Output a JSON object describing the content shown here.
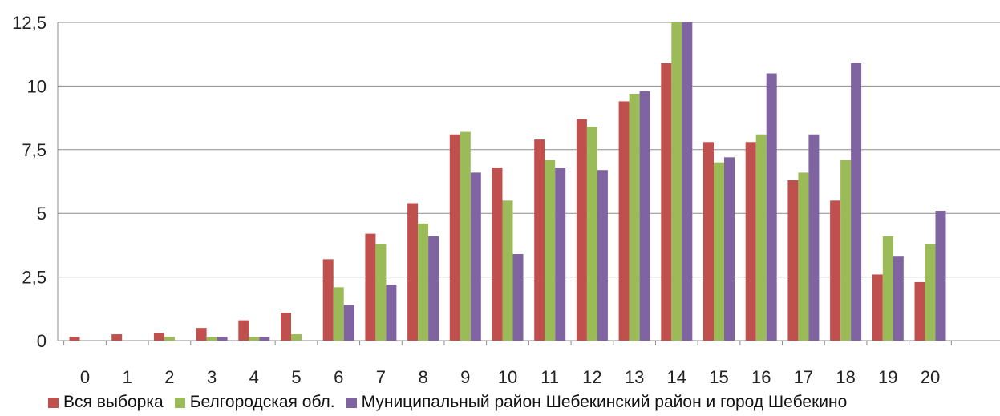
{
  "chart_data": {
    "type": "bar",
    "categories": [
      "0",
      "1",
      "2",
      "3",
      "4",
      "5",
      "6",
      "7",
      "8",
      "9",
      "10",
      "11",
      "12",
      "13",
      "14",
      "15",
      "16",
      "17",
      "18",
      "19",
      "20"
    ],
    "series": [
      {
        "name": "Вся выборка",
        "color": "#c0504d",
        "values": [
          0.15,
          0.25,
          0.3,
          0.5,
          0.8,
          1.1,
          3.2,
          4.2,
          5.4,
          8.1,
          6.8,
          7.9,
          8.7,
          9.4,
          10.9,
          7.8,
          7.8,
          6.3,
          5.5,
          2.6,
          2.3
        ]
      },
      {
        "name": "Белгородская обл.",
        "color": "#9bbb59",
        "values": [
          0,
          0,
          0.15,
          0.15,
          0.15,
          0.25,
          2.1,
          3.8,
          4.6,
          8.2,
          5.5,
          7.1,
          8.4,
          9.7,
          12.5,
          7.0,
          8.1,
          6.6,
          7.1,
          4.1,
          3.8
        ]
      },
      {
        "name": "Муниципальный район Шебекинский район и город Шебекино",
        "color": "#8064a2",
        "values": [
          0,
          0,
          0,
          0.15,
          0.15,
          0,
          1.4,
          2.2,
          4.1,
          6.6,
          3.4,
          6.8,
          6.7,
          9.8,
          12.5,
          7.2,
          10.5,
          8.1,
          10.9,
          3.3,
          5.1
        ]
      }
    ],
    "yticks": [
      "0",
      "2,5",
      "5",
      "7,5",
      "10",
      "12,5"
    ],
    "ytick_values": [
      0,
      2.5,
      5,
      7.5,
      10,
      12.5
    ],
    "ylim": [
      0,
      12.5
    ],
    "grid": true,
    "legend_position": "bottom",
    "title": "",
    "xlabel": "",
    "ylabel": ""
  }
}
